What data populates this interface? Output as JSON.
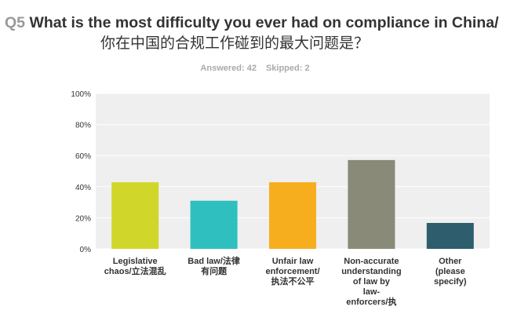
{
  "question": {
    "number": "Q5",
    "title_en": "What is the most difficulty you ever had on compliance in China/",
    "title_cn": "你在中国的合规工作碰到的最大问题是？"
  },
  "stats": {
    "answered": "Answered: 42",
    "skipped": "Skipped: 2"
  },
  "chart_data": {
    "type": "bar",
    "categories": [
      [
        "Legislative",
        "chaos/立法混乱"
      ],
      [
        "Bad law/法律",
        "有问题"
      ],
      [
        "Unfair law",
        "enforcement/",
        "执法不公平"
      ],
      [
        "Non-accurate",
        "understanding",
        "of law by",
        "law-",
        "enforcers/执"
      ],
      [
        "Other",
        "(please",
        "specify)"
      ]
    ],
    "values": [
      42.86,
      30.95,
      42.86,
      57.14,
      16.67
    ],
    "ylim": [
      0,
      100
    ],
    "yticks": [
      "0%",
      "20%",
      "40%",
      "60%",
      "80%",
      "100%"
    ],
    "grid": true,
    "colors": [
      "#d1d62a",
      "#2fbfbf",
      "#f6ae1f",
      "#8a8a78",
      "#2e5e6e"
    ],
    "plot_background": "#efefef"
  }
}
